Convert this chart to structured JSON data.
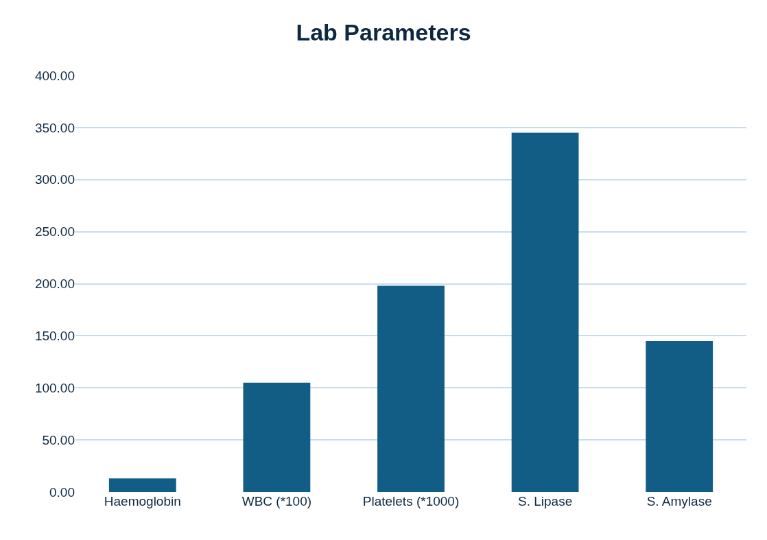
{
  "chart_data": {
    "type": "bar",
    "title": "Lab Parameters",
    "categories": [
      "Haemoglobin",
      "WBC (*100)",
      "Platelets (*1000)",
      "S. Lipase",
      "S. Amylase"
    ],
    "values": [
      13,
      105,
      198,
      345,
      145
    ],
    "color": "#115d85",
    "ylim": [
      0,
      400
    ],
    "yticks": [
      {
        "value": 0,
        "label": "0.00"
      },
      {
        "value": 50,
        "label": "50.00"
      },
      {
        "value": 100,
        "label": "100.00"
      },
      {
        "value": 150,
        "label": "150.00"
      },
      {
        "value": 200,
        "label": "200.00"
      },
      {
        "value": 250,
        "label": "250.00"
      },
      {
        "value": 300,
        "label": "300.00"
      },
      {
        "value": 350,
        "label": "350.00"
      },
      {
        "value": 400,
        "label": "400.00"
      }
    ],
    "grid": "y"
  }
}
